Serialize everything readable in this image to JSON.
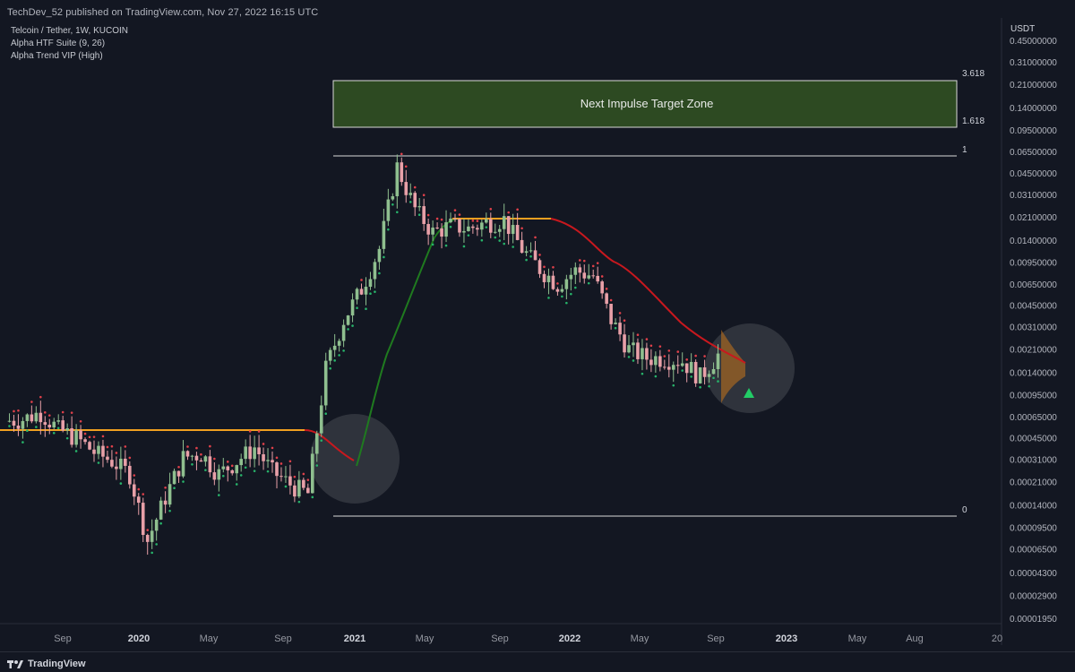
{
  "header": {
    "published": "TechDev_52 published on TradingView.com, Nov 27, 2022 16:15 UTC"
  },
  "legend": {
    "symbol": "Telcoin / Tether, 1W, KUCOIN",
    "indicator1": "Alpha HTF Suite (9, 26)",
    "indicator2": "Alpha Trend VIP (High)"
  },
  "brand": {
    "name": "TradingView",
    "logo_icon": "tradingview-logo-icon"
  },
  "colors": {
    "background": "#131722",
    "up_candle": "#8fbf8f",
    "down_candle": "#e8a0a8",
    "htf_green": "#1f7a1f",
    "htf_red": "#c8181e",
    "htf_orange": "#f0a020",
    "target_zone_fill": "#2d4a22",
    "fib_line": "#d8d8d8",
    "signal_up": "#22cc66"
  },
  "chart_data": {
    "type": "candlestick",
    "title": "Telcoin / Tether, 1W, KUCOIN",
    "y_axis": {
      "unit": "USDT",
      "scale": "log",
      "ticks": [
        "0.45000000",
        "0.31000000",
        "0.21000000",
        "0.14000000",
        "0.09500000",
        "0.06500000",
        "0.04500000",
        "0.03100000",
        "0.02100000",
        "0.01400000",
        "0.00950000",
        "0.00650000",
        "0.00450000",
        "0.00310000",
        "0.00210000",
        "0.00140000",
        "0.00095000",
        "0.00065000",
        "0.00045000",
        "0.00031000",
        "0.00021000",
        "0.00014000",
        "0.00009500",
        "0.00006500",
        "0.00004300",
        "0.00002900",
        "0.00001950"
      ]
    },
    "x_axis": {
      "ticks": [
        "Sep",
        "2020",
        "May",
        "Sep",
        "2021",
        "May",
        "Sep",
        "2022",
        "May",
        "Sep",
        "2023",
        "May",
        "Aug",
        "20"
      ]
    },
    "fib_levels": [
      {
        "label": "3.618",
        "price": 0.24
      },
      {
        "label": "1.618",
        "price": 0.11
      },
      {
        "label": "1",
        "price": 0.07
      },
      {
        "label": "0",
        "price": 0.000128
      }
    ],
    "target_zone": {
      "label": "Next Impulse Target Zone",
      "from": 0.11,
      "to": 0.24
    },
    "price_path": [
      [
        "2019-07",
        0.0006
      ],
      [
        "2019-08",
        0.00062
      ],
      [
        "2019-09",
        0.0007
      ],
      [
        "2019-10",
        0.00052
      ],
      [
        "2019-11",
        0.00045
      ],
      [
        "2019-12",
        0.00035
      ],
      [
        "2020-01",
        0.0003
      ],
      [
        "2020-02",
        0.00024
      ],
      [
        "2020-03",
        7.5e-05
      ],
      [
        "2020-04",
        0.00016
      ],
      [
        "2020-05",
        0.00032
      ],
      [
        "2020-06",
        0.00034
      ],
      [
        "2020-07",
        0.00024
      ],
      [
        "2020-08",
        0.0003
      ],
      [
        "2020-09",
        0.00038
      ],
      [
        "2020-10",
        0.00025
      ],
      [
        "2020-11",
        0.0002
      ],
      [
        "2020-12",
        0.00017
      ],
      [
        "2021-01",
        0.0015
      ],
      [
        "2021-02",
        0.0035
      ],
      [
        "2021-03",
        0.006
      ],
      [
        "2021-04",
        0.012
      ],
      [
        "2021-05",
        0.05
      ],
      [
        "2021-06",
        0.024
      ],
      [
        "2021-07",
        0.016
      ],
      [
        "2021-08",
        0.018
      ],
      [
        "2021-09",
        0.017
      ],
      [
        "2021-10",
        0.019
      ],
      [
        "2021-11",
        0.02
      ],
      [
        "2021-12",
        0.012
      ],
      [
        "2022-01",
        0.0085
      ],
      [
        "2022-02",
        0.0065
      ],
      [
        "2022-03",
        0.0082
      ],
      [
        "2022-04",
        0.0075
      ],
      [
        "2022-05",
        0.0035
      ],
      [
        "2022-06",
        0.0021
      ],
      [
        "2022-07",
        0.0018
      ],
      [
        "2022-08",
        0.0018
      ],
      [
        "2022-09",
        0.0017
      ],
      [
        "2022-10",
        0.0013
      ],
      [
        "2022-11",
        0.0019
      ]
    ],
    "signal": {
      "type": "buy-arrow",
      "date": "2022-11"
    }
  }
}
